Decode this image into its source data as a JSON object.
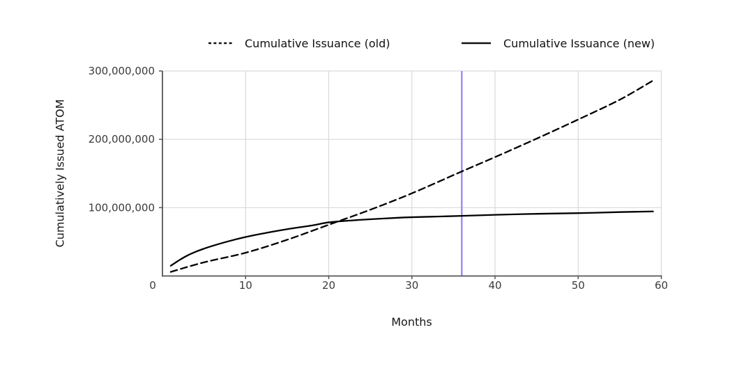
{
  "figure": {
    "background": "#ffffff"
  },
  "legend": {
    "position": "top",
    "items": [
      {
        "label": "Cumulative Issuance (old)",
        "style": "dashed",
        "color": "#000000"
      },
      {
        "label": "Cumulative Issuance (new)",
        "style": "solid",
        "color": "#000000"
      }
    ]
  },
  "chart_data": {
    "type": "line",
    "title": "",
    "xlabel": "Months",
    "ylabel": "Cumulatively Issued ATOM",
    "xlim": [
      0,
      60
    ],
    "ylim": [
      0,
      300000000
    ],
    "x_ticks": [
      0,
      10,
      20,
      30,
      40,
      50,
      60
    ],
    "x_tick_labels": [
      "0",
      "10",
      "20",
      "30",
      "40",
      "50",
      "60"
    ],
    "y_ticks": [
      100000000,
      200000000,
      300000000
    ],
    "y_tick_labels": [
      "100,000,000",
      "200,000,000",
      "300,000,000"
    ],
    "grid": true,
    "legend_position": "top center",
    "colors": {
      "grid": "#d9d9d9",
      "axis": "#555555",
      "tick_label": "#3b3b3b",
      "series": "#000000",
      "vline": "#9d8ef2"
    },
    "series": [
      {
        "name": "Cumulative Issuance (old)",
        "style": "dashed",
        "color": "#000000",
        "points": [
          [
            1,
            6000000
          ],
          [
            5,
            20000000
          ],
          [
            10,
            34000000
          ],
          [
            15,
            53000000
          ],
          [
            20,
            75000000
          ],
          [
            25,
            97000000
          ],
          [
            30,
            121000000
          ],
          [
            36,
            153000000
          ],
          [
            40,
            174000000
          ],
          [
            45,
            201000000
          ],
          [
            50,
            229000000
          ],
          [
            55,
            258000000
          ],
          [
            59,
            286000000
          ]
        ]
      },
      {
        "name": "Cumulative Issuance (new)",
        "style": "solid",
        "color": "#000000",
        "points": [
          [
            1,
            15000000
          ],
          [
            2,
            23000000
          ],
          [
            3,
            30000000
          ],
          [
            4,
            35500000
          ],
          [
            5,
            40000000
          ],
          [
            6,
            44000000
          ],
          [
            8,
            51000000
          ],
          [
            10,
            57000000
          ],
          [
            12,
            62000000
          ],
          [
            15,
            68500000
          ],
          [
            18,
            74000000
          ],
          [
            20,
            78500000
          ],
          [
            23,
            81500000
          ],
          [
            25,
            83000000
          ],
          [
            28,
            85000000
          ],
          [
            30,
            86000000
          ],
          [
            33,
            87000000
          ],
          [
            36,
            88000000
          ],
          [
            40,
            89500000
          ],
          [
            45,
            91000000
          ],
          [
            50,
            92000000
          ],
          [
            55,
            93500000
          ],
          [
            59,
            94500000
          ]
        ]
      }
    ],
    "annotations": [
      {
        "type": "vline",
        "x": 36,
        "color": "#9d8ef2"
      }
    ]
  }
}
